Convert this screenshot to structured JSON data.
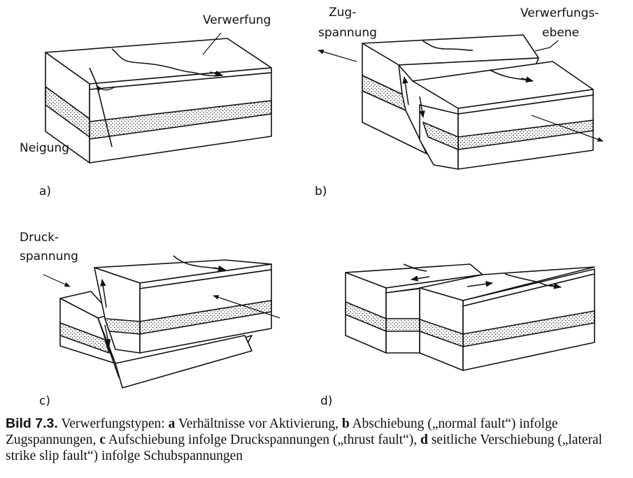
{
  "panels": {
    "a": {
      "letter": "a)",
      "label_fault": "Verwerfung",
      "label_dip": "Neigung"
    },
    "b": {
      "letter": "b)",
      "label_tension_1": "Zug-",
      "label_tension_2": "spannung",
      "label_plane_1": "Verwerfungs-",
      "label_plane_2": "ebene"
    },
    "c": {
      "letter": "c)",
      "label_pressure_1": "Druck-",
      "label_pressure_2": "spannung"
    },
    "d": {
      "letter": "d)"
    }
  },
  "caption": {
    "figure_label": "Bild 7.3.",
    "intro": "Verwerfungstypen: ",
    "a_key": "a",
    "a_text": " Verhältnisse vor Aktivierung, ",
    "b_key": "b",
    "b_text": " Abschiebung („normal fault“) infolge Zugspannungen, ",
    "c_key": "c",
    "c_text": " Aufschiebung infolge Druckspannungen („thrust fault“), ",
    "d_key": "d",
    "d_text": " seitliche Verschiebung („lateral strike slip fault“) infolge Schubspannungen"
  },
  "colors": {
    "line": "#111111",
    "background": "#ffffff"
  }
}
